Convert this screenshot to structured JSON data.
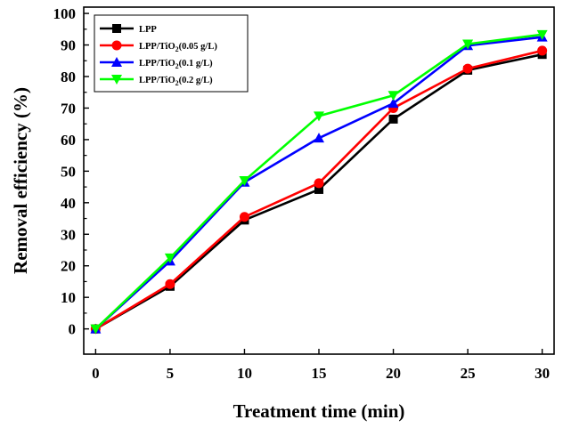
{
  "chart_data": {
    "type": "line",
    "xlabel": "Treatment time (min)",
    "ylabel": "Removal efficiency (%)",
    "xlim": [
      -0.8,
      30.8
    ],
    "ylim": [
      -8,
      102
    ],
    "x_ticks": [
      0,
      5,
      10,
      15,
      20,
      25,
      30
    ],
    "y_ticks": [
      0,
      10,
      20,
      30,
      40,
      50,
      60,
      70,
      80,
      90,
      100
    ],
    "x_tick_labels": [
      "0",
      "5",
      "10",
      "15",
      "20",
      "25",
      "30"
    ],
    "y_tick_labels": [
      "0",
      "10",
      "20",
      "30",
      "40",
      "50",
      "60",
      "70",
      "80",
      "90",
      "100"
    ],
    "x": [
      0,
      5,
      10,
      15,
      20,
      25,
      30
    ],
    "legend_position": "top-left",
    "grid": false,
    "series": [
      {
        "name": "LPP",
        "name_main": "LPP",
        "name_sub": "",
        "name_tail": "",
        "color": "#000000",
        "marker": "square",
        "values": [
          0,
          13.5,
          34.5,
          44.2,
          66.5,
          82.0,
          87.0
        ]
      },
      {
        "name": "LPP/TiO2(0.05 g/L)",
        "name_main": "LPP/TiO",
        "name_sub": "2",
        "name_tail": "(0.05 g/L)",
        "color": "#ff0000",
        "marker": "circle",
        "values": [
          0,
          14.2,
          35.5,
          46.2,
          70.0,
          82.5,
          88.2
        ]
      },
      {
        "name": "LPP/TiO2(0.1 g/L)",
        "name_main": "LPP/TiO",
        "name_sub": "2",
        "name_tail": "(0.1 g/L)",
        "color": "#0000ff",
        "marker": "triangle-up",
        "values": [
          0,
          21.5,
          46.5,
          60.5,
          71.5,
          89.8,
          92.5
        ]
      },
      {
        "name": "LPP/TiO2(0.2 g/L)",
        "name_main": "LPP/TiO",
        "name_sub": "2",
        "name_tail": "(0.2 g/L)",
        "color": "#00ff00",
        "marker": "triangle-down",
        "values": [
          0,
          22.5,
          47.0,
          67.5,
          74.0,
          90.3,
          93.3
        ]
      }
    ]
  }
}
